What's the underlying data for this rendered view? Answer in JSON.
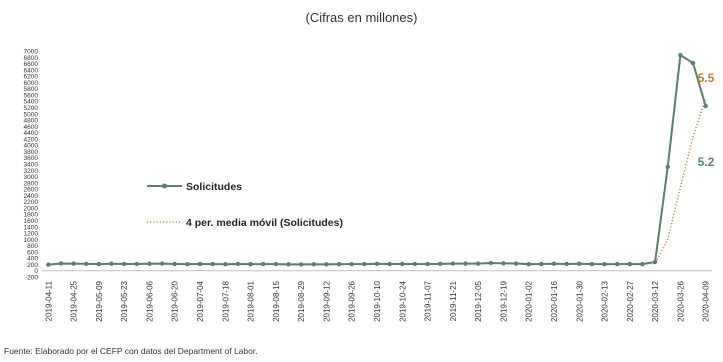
{
  "subtitle": "(Cifras en millones)",
  "source": "Fuente: Elaborado por el CEFP con datos del Department of Labor.",
  "colors": {
    "solicitudes": "#5b7f6b",
    "media_movil": "#b97838",
    "axis": "#bfbfbf",
    "text": "#333333"
  },
  "chart_data": {
    "type": "line",
    "title": "",
    "xlabel": "",
    "ylabel": "",
    "ylim": [
      -200,
      7000
    ],
    "yticks": [
      -200,
      0,
      200,
      400,
      600,
      800,
      1000,
      1200,
      1400,
      1600,
      1800,
      2000,
      2200,
      2400,
      2600,
      2800,
      3000,
      3200,
      3400,
      3600,
      3800,
      4000,
      4200,
      4400,
      4600,
      4800,
      5000,
      5200,
      5400,
      5600,
      5800,
      6000,
      6200,
      6400,
      6600,
      6800,
      7000
    ],
    "x": [
      "2019-04-11",
      "2019-04-18",
      "2019-04-25",
      "2019-05-02",
      "2019-05-09",
      "2019-05-16",
      "2019-05-23",
      "2019-05-30",
      "2019-06-06",
      "2019-06-13",
      "2019-06-20",
      "2019-06-27",
      "2019-07-04",
      "2019-07-11",
      "2019-07-18",
      "2019-07-25",
      "2019-08-01",
      "2019-08-08",
      "2019-08-15",
      "2019-08-22",
      "2019-08-29",
      "2019-09-05",
      "2019-09-12",
      "2019-09-19",
      "2019-09-26",
      "2019-10-03",
      "2019-10-10",
      "2019-10-17",
      "2019-10-24",
      "2019-10-31",
      "2019-11-07",
      "2019-11-14",
      "2019-11-21",
      "2019-11-28",
      "2019-12-05",
      "2019-12-12",
      "2019-12-19",
      "2019-12-26",
      "2020-01-02",
      "2020-01-09",
      "2020-01-16",
      "2020-01-23",
      "2020-01-30",
      "2020-02-06",
      "2020-02-13",
      "2020-02-20",
      "2020-02-27",
      "2020-03-05",
      "2020-03-12",
      "2020-03-19",
      "2020-03-26",
      "2020-04-02",
      "2020-04-09"
    ],
    "x_tick_labels": [
      "2019-04-11",
      "2019-04-25",
      "2019-05-09",
      "2019-05-23",
      "2019-06-06",
      "2019-06-20",
      "2019-07-04",
      "2019-07-18",
      "2019-08-01",
      "2019-08-15",
      "2019-08-29",
      "2019-09-12",
      "2019-09-26",
      "2019-10-10",
      "2019-10-24",
      "2019-11-07",
      "2019-11-21",
      "2019-12-05",
      "2019-12-19",
      "2020-01-02",
      "2020-01-16",
      "2020-01-30",
      "2020-02-13",
      "2020-02-27",
      "2020-03-12",
      "2020-03-26",
      "2020-04-09"
    ],
    "series": [
      {
        "name": "Solicitudes",
        "style": "solid-with-markers",
        "values": [
          196,
          230,
          228,
          218,
          212,
          222,
          215,
          216,
          222,
          227,
          216,
          209,
          216,
          210,
          206,
          215,
          209,
          212,
          211,
          204,
          201,
          208,
          204,
          209,
          209,
          211,
          220,
          214,
          216,
          215,
          211,
          219,
          227,
          228,
          227,
          246,
          235,
          229,
          208,
          214,
          223,
          216,
          224,
          209,
          209,
          211,
          213,
          209,
          282,
          3307,
          6867,
          6615,
          5245
        ]
      },
      {
        "name": "4 per. media móvil (Solicitudes)",
        "style": "dotted",
        "values": [
          201,
          207,
          216,
          218,
          222,
          220,
          217,
          216,
          219,
          220,
          220,
          218,
          217,
          215,
          210,
          212,
          210,
          211,
          212,
          209,
          207,
          206,
          204,
          205,
          207,
          208,
          212,
          213,
          215,
          216,
          215,
          215,
          218,
          222,
          225,
          232,
          234,
          234,
          229,
          222,
          220,
          215,
          220,
          218,
          214,
          211,
          209,
          211,
          229,
          1003,
          2665,
          4268,
          5509
        ]
      }
    ],
    "annotations": [
      {
        "text": "5.5",
        "series": 1
      },
      {
        "text": "5.2",
        "series": 0
      }
    ],
    "legend": {
      "placement": "center-left"
    },
    "grid": false
  }
}
